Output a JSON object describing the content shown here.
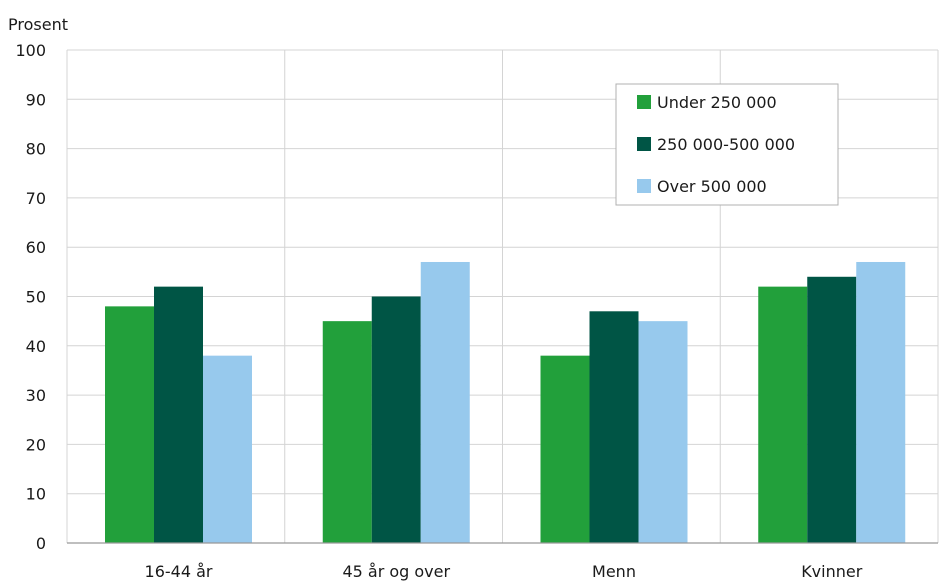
{
  "chart_data": {
    "type": "bar",
    "ylabel": "Prosent",
    "ylim": [
      0,
      100
    ],
    "yticks": [
      0,
      10,
      20,
      30,
      40,
      50,
      60,
      70,
      80,
      90,
      100
    ],
    "categories": [
      "16-44 år",
      "45 år og over",
      "Menn",
      "Kvinner"
    ],
    "series": [
      {
        "name": "Under 250 000",
        "color": "#22a03b",
        "values": [
          48,
          45,
          38,
          52
        ]
      },
      {
        "name": "250 000-500 000",
        "color": "#005545",
        "values": [
          52,
          50,
          47,
          54
        ]
      },
      {
        "name": "Over 500 000",
        "color": "#97c9ed",
        "values": [
          38,
          57,
          45,
          57
        ]
      }
    ],
    "grid": true,
    "legend_position": "top-right"
  }
}
